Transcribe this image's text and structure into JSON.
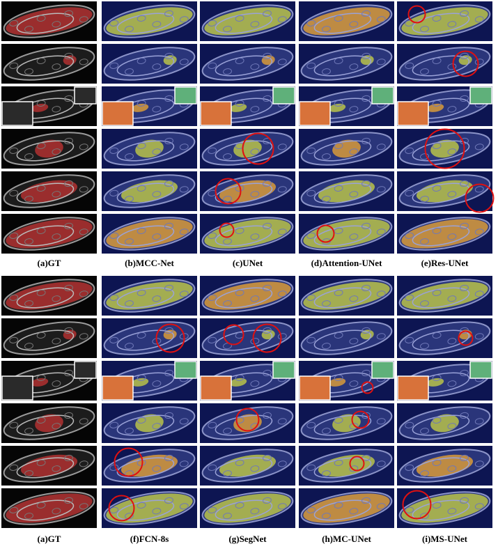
{
  "panels": [
    {
      "labels": [
        "(a)GT",
        "(b)MCC-Net",
        "(c)UNet",
        "(d)Attention-UNet",
        "(e)Res-UNet"
      ]
    },
    {
      "labels": [
        "(a)GT",
        "(f)FCN-8s",
        "(g)SegNet",
        "(h)MC-UNet",
        "(i)MS-UNet"
      ]
    }
  ]
}
